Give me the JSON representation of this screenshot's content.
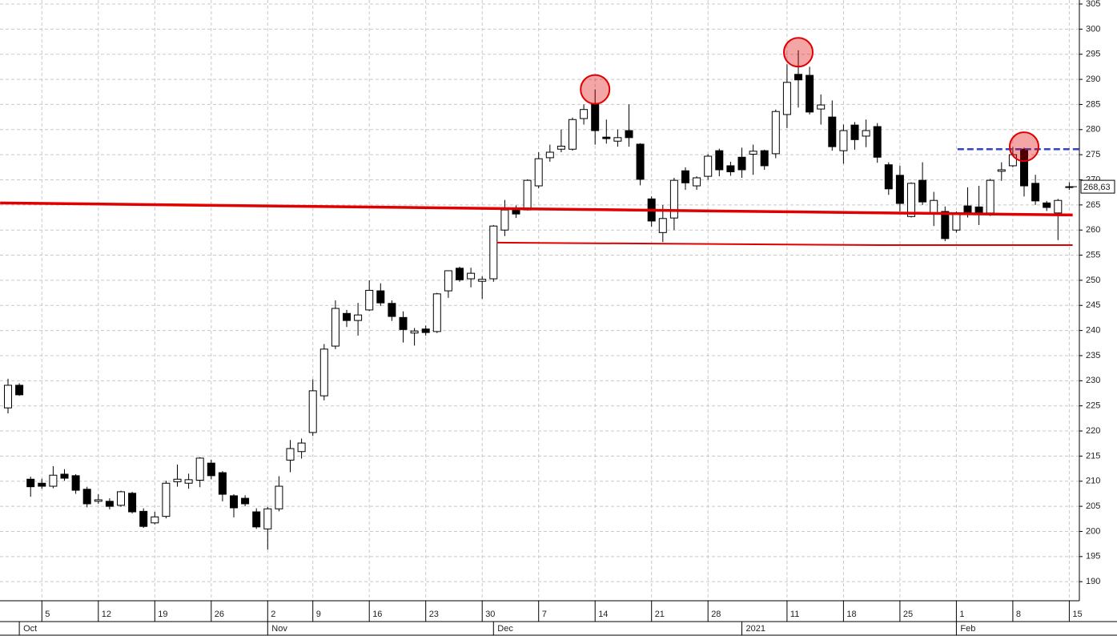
{
  "chart_data": {
    "type": "candlestick",
    "categories": [
      null,
      null,
      null,
      "5",
      null,
      null,
      null,
      null,
      "12",
      null,
      null,
      null,
      null,
      "19",
      null,
      null,
      null,
      null,
      "26",
      null,
      null,
      null,
      null,
      "2",
      null,
      null,
      null,
      "9",
      null,
      null,
      null,
      null,
      "16",
      null,
      null,
      null,
      null,
      "23",
      null,
      null,
      null,
      null,
      "30",
      null,
      null,
      null,
      null,
      "7",
      null,
      null,
      null,
      null,
      "14",
      null,
      null,
      null,
      null,
      "21",
      null,
      null,
      null,
      null,
      "28",
      null,
      null,
      null,
      null,
      null,
      null,
      "11",
      null,
      null,
      null,
      null,
      "18",
      null,
      null,
      null,
      null,
      "25",
      null,
      null,
      null,
      null,
      "1",
      null,
      null,
      null,
      null,
      "8",
      null,
      null,
      null,
      null,
      "15"
    ],
    "months": [
      null,
      "Oct",
      null,
      null,
      null,
      null,
      null,
      null,
      null,
      null,
      null,
      null,
      null,
      null,
      null,
      null,
      null,
      null,
      null,
      null,
      null,
      null,
      null,
      "Nov",
      null,
      null,
      null,
      null,
      null,
      null,
      null,
      null,
      null,
      null,
      null,
      null,
      null,
      null,
      null,
      null,
      null,
      null,
      null,
      "Dec",
      null,
      null,
      null,
      null,
      null,
      null,
      null,
      null,
      null,
      null,
      null,
      null,
      null,
      null,
      null,
      null,
      null,
      null,
      null,
      null,
      null,
      "2021",
      null,
      null,
      null,
      null,
      null,
      null,
      null,
      null,
      null,
      null,
      null,
      null,
      null,
      null,
      null,
      null,
      null,
      null,
      "Feb",
      null,
      null,
      null,
      null,
      null,
      null,
      null,
      null,
      null,
      null
    ],
    "open": [
      224.6,
      229.1,
      210.4,
      209.6,
      209.0,
      211.4,
      211.1,
      208.4,
      206.0,
      206.0,
      205.2,
      207.6,
      204.0,
      201.7,
      203.0,
      209.9,
      209.6,
      210.2,
      213.6,
      211.7,
      207.1,
      206.6,
      203.9,
      200.5,
      204.5,
      214.2,
      215.9,
      219.7,
      227.0,
      236.9,
      243.4,
      242.0,
      244.1,
      247.9,
      245.4,
      242.6,
      239.5,
      240.3,
      239.8,
      247.9,
      252.4,
      250.3,
      249.8,
      250.3,
      260.0,
      264.3,
      264.0,
      268.8,
      274.4,
      276.1,
      276.1,
      282.2,
      285.1,
      278.5,
      277.7,
      279.8,
      277.1,
      266.2,
      259.5,
      262.4,
      271.8,
      268.8,
      270.7,
      275.8,
      272.8,
      274.5,
      275.1,
      275.8,
      275.2,
      283.0,
      291.0,
      290.8,
      284.1,
      282.5,
      275.8,
      280.9,
      278.7,
      280.6,
      273.0,
      270.9,
      262.7,
      269.9,
      263.4,
      263.7,
      260.0,
      264.8,
      264.6,
      263.4,
      271.7,
      272.8,
      276.1,
      269.3,
      265.4,
      263.4,
      268.63
    ],
    "high": [
      230.4,
      229.5,
      210.9,
      210.5,
      213.0,
      212.4,
      211.4,
      208.9,
      207.4,
      206.6,
      208.1,
      207.9,
      204.6,
      203.9,
      210.1,
      213.3,
      211.5,
      214.8,
      214.3,
      212.0,
      207.4,
      207.2,
      204.6,
      204.9,
      211.0,
      218.2,
      218.5,
      230.3,
      237.3,
      246.0,
      244.1,
      245.5,
      250.0,
      249.4,
      246.0,
      243.8,
      240.5,
      241.0,
      247.5,
      252.0,
      252.7,
      252.5,
      250.8,
      261.0,
      266.0,
      264.9,
      270.1,
      275.5,
      277.0,
      280.0,
      282.4,
      285.0,
      288.0,
      282.0,
      280.0,
      285.0,
      277.3,
      266.7,
      265.0,
      270.4,
      272.5,
      270.7,
      275.1,
      276.2,
      273.6,
      276.4,
      277.0,
      276.0,
      284.0,
      293.0,
      295.8,
      292.5,
      287.0,
      285.8,
      281.0,
      281.5,
      282.0,
      281.3,
      273.5,
      272.8,
      269.5,
      273.5,
      267.6,
      264.7,
      263.7,
      268.5,
      268.8,
      270.2,
      273.5,
      276.5,
      276.4,
      271.0,
      265.8,
      266.2,
      269.5
    ],
    "low": [
      223.5,
      227.0,
      206.9,
      208.5,
      208.6,
      210.1,
      207.5,
      204.8,
      205.5,
      204.4,
      204.9,
      203.6,
      200.7,
      201.4,
      202.6,
      208.9,
      208.5,
      208.8,
      210.4,
      206.0,
      202.8,
      205.0,
      200.5,
      196.4,
      204.0,
      211.8,
      214.5,
      219.0,
      226.1,
      236.3,
      240.7,
      239.0,
      243.9,
      244.9,
      241.9,
      237.6,
      237.0,
      239.0,
      239.5,
      246.5,
      249.7,
      248.6,
      246.3,
      249.7,
      258.8,
      262.4,
      263.9,
      268.3,
      273.6,
      275.5,
      275.8,
      281.0,
      277.0,
      277.2,
      276.6,
      276.6,
      268.9,
      260.7,
      257.6,
      260.0,
      268.0,
      268.0,
      270.0,
      270.7,
      270.8,
      270.4,
      271.0,
      272.0,
      274.3,
      280.3,
      284.4,
      283.0,
      281.0,
      275.8,
      273.2,
      276.0,
      276.5,
      273.4,
      267.0,
      263.7,
      262.5,
      265.0,
      260.8,
      257.8,
      259.5,
      262.5,
      261.0,
      262.8,
      269.8,
      272.5,
      266.7,
      265.0,
      263.8,
      258.0,
      268.0
    ],
    "close": [
      229.1,
      227.2,
      208.9,
      209.0,
      211.2,
      210.6,
      208.2,
      205.5,
      206.3,
      205.0,
      207.9,
      203.9,
      201.0,
      202.9,
      209.6,
      210.4,
      210.3,
      214.6,
      211.1,
      207.4,
      204.7,
      205.5,
      200.9,
      204.5,
      209.0,
      216.5,
      217.6,
      228.0,
      236.3,
      244.4,
      242.0,
      243.1,
      248.0,
      245.5,
      242.8,
      240.2,
      239.9,
      239.6,
      247.3,
      251.9,
      250.1,
      251.4,
      250.2,
      260.8,
      264.0,
      263.2,
      269.9,
      274.2,
      275.5,
      276.7,
      282.0,
      284.0,
      279.8,
      278.2,
      278.4,
      278.4,
      270.1,
      261.8,
      262.3,
      269.9,
      269.4,
      270.4,
      274.7,
      272.0,
      271.6,
      272.0,
      275.7,
      272.8,
      283.6,
      289.4,
      289.9,
      283.5,
      284.9,
      276.6,
      279.8,
      278.0,
      279.8,
      274.5,
      268.2,
      265.3,
      269.3,
      265.6,
      265.9,
      258.3,
      263.4,
      263.4,
      263.4,
      269.9,
      272.0,
      275.0,
      268.8,
      265.8,
      264.5,
      265.9,
      268.63
    ],
    "up_color": "#ffffff",
    "down_color": "#000000",
    "ylim": [
      186.2,
      305.8
    ],
    "yticks": [
      190,
      195,
      200,
      205,
      210,
      215,
      220,
      225,
      230,
      235,
      240,
      245,
      250,
      255,
      260,
      265,
      270,
      275,
      280,
      285,
      290,
      295,
      300,
      305
    ],
    "grid": true,
    "last_price": {
      "value": 268.63,
      "label": "268,63"
    },
    "lines": [
      {
        "color": "#e00000",
        "style": "thick",
        "points": [
          [
            -0.7,
            265.4
          ],
          [
            94.3,
            263.0
          ]
        ]
      },
      {
        "color": "#e00000",
        "style": "thin",
        "points": [
          [
            43.3,
            257.5
          ],
          [
            77.3,
            257.0
          ],
          [
            94.3,
            257.0
          ]
        ]
      },
      {
        "color": "#3344cc",
        "style": "dashed",
        "points": [
          [
            84.1,
            276.1
          ],
          [
            94.9,
            276.1
          ]
        ]
      }
    ],
    "circles": [
      {
        "color": "#e00000",
        "x": 52,
        "y": 288.0
      },
      {
        "color": "#e00000",
        "x": 70,
        "y": 295.4
      },
      {
        "color": "#e00000",
        "x": 90,
        "y": 276.6
      }
    ]
  }
}
